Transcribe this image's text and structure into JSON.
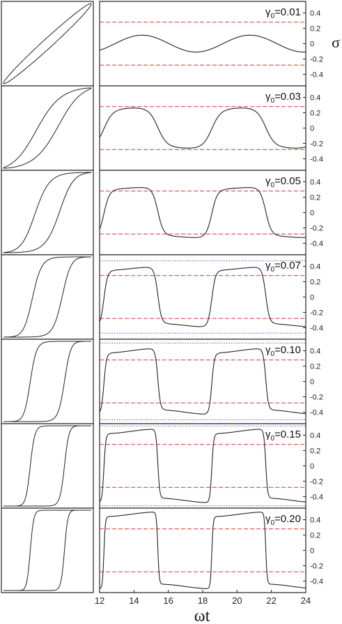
{
  "chart_data": {
    "type": "line",
    "xlabel": "ωt",
    "ylabel": "σ",
    "xlim": [
      12,
      24
    ],
    "ylim": [
      -0.55,
      0.55
    ],
    "x_ticks": [
      "12",
      "14",
      "16",
      "18",
      "20",
      "22",
      "24"
    ],
    "y_ticks": [
      "0.4",
      "0.2",
      "0",
      "-0.2",
      "-0.4"
    ],
    "gamma_symbol": "γ",
    "gamma_subscript": "0",
    "colors": {
      "curve": "#222222",
      "dashed": "#e03030",
      "dotted": "#5050d0",
      "frame": "#222222"
    },
    "red_dashed_level": 0.28,
    "panels": [
      {
        "gamma": "=0.01",
        "amplitude": 0.11,
        "sharpness": 0.15,
        "dotted_level": null
      },
      {
        "gamma": "=0.03",
        "amplitude": 0.26,
        "sharpness": 1.8,
        "dotted_level": null
      },
      {
        "gamma": "=0.05",
        "amplitude": 0.32,
        "sharpness": 3.0,
        "dotted_level": null
      },
      {
        "gamma": "=0.07",
        "amplitude": 0.37,
        "sharpness": 4.6,
        "dotted_level": 0.47
      },
      {
        "gamma": "=0.10",
        "amplitude": 0.4,
        "sharpness": 6.5,
        "dotted_level": 0.5
      },
      {
        "gamma": "=0.15",
        "amplitude": 0.45,
        "sharpness": 9.0,
        "dotted_level": 0.52
      },
      {
        "gamma": "=0.20",
        "amplitude": 0.47,
        "sharpness": 12.0,
        "dotted_level": null
      }
    ]
  }
}
